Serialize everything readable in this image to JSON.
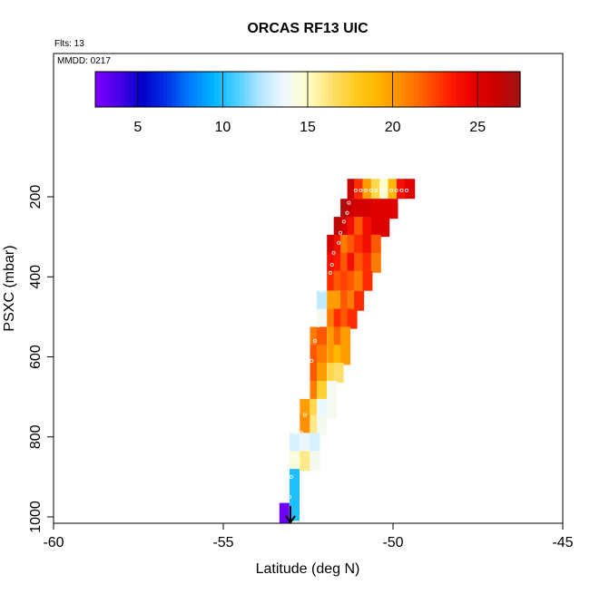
{
  "chart_data": {
    "type": "heatmap",
    "title": "ORCAS RF13 UIC",
    "annotations": {
      "flights": "Flts: 13",
      "date": "MMDD: 0217"
    },
    "xlabel": "Latitude (deg N)",
    "ylabel": "PSXC (mbar)",
    "xlim": [
      -60,
      -45
    ],
    "ylim": [
      1000,
      0
    ],
    "xticks": [
      "-60",
      "-55",
      "-50",
      "-45"
    ],
    "yticks": [
      "200",
      "400",
      "600",
      "800",
      "1000"
    ],
    "colorbar": {
      "range": [
        2.5,
        27.5
      ],
      "ticks": [
        "5",
        "10",
        "15",
        "20",
        "25"
      ],
      "colors": [
        "#8000ff",
        "#4a00e8",
        "#0000c8",
        "#0030e6",
        "#007cff",
        "#00b4ff",
        "#4ccfff",
        "#b4e6ff",
        "#f0f8ff",
        "#ffffc8",
        "#ffe070",
        "#ffcc20",
        "#ffb400",
        "#ff8c00",
        "#ff5a00",
        "#ff1e00",
        "#e60000",
        "#c80000",
        "#a01414"
      ]
    },
    "cells": [
      [
        -51.2,
        180,
        26
      ],
      [
        -51.0,
        180,
        23
      ],
      [
        -50.75,
        180,
        20
      ],
      [
        -50.5,
        180,
        17
      ],
      [
        -50.25,
        180,
        14.8
      ],
      [
        -50.0,
        180,
        19
      ],
      [
        -49.75,
        180,
        24
      ],
      [
        -49.5,
        180,
        25
      ],
      [
        -51.4,
        230,
        27
      ],
      [
        -51.2,
        230,
        26
      ],
      [
        -51.0,
        230,
        25.5
      ],
      [
        -50.75,
        230,
        25.5
      ],
      [
        -50.5,
        230,
        25
      ],
      [
        -50.25,
        230,
        25
      ],
      [
        -50.0,
        230,
        25
      ],
      [
        -51.6,
        275,
        26.5
      ],
      [
        -51.4,
        275,
        25.5
      ],
      [
        -51.2,
        275,
        24
      ],
      [
        -51.0,
        275,
        22
      ],
      [
        -50.75,
        275,
        24
      ],
      [
        -50.5,
        275,
        25
      ],
      [
        -50.25,
        275,
        25
      ],
      [
        -51.8,
        320,
        25.5
      ],
      [
        -51.6,
        320,
        24
      ],
      [
        -51.4,
        320,
        21
      ],
      [
        -51.2,
        320,
        22
      ],
      [
        -51.0,
        320,
        23
      ],
      [
        -50.75,
        320,
        24
      ],
      [
        -50.5,
        320,
        22
      ],
      [
        -51.8,
        365,
        24
      ],
      [
        -51.6,
        365,
        23.5
      ],
      [
        -51.4,
        365,
        22
      ],
      [
        -51.2,
        365,
        24
      ],
      [
        -51.0,
        365,
        22
      ],
      [
        -50.75,
        365,
        23
      ],
      [
        -50.5,
        365,
        21
      ],
      [
        -51.8,
        410,
        23
      ],
      [
        -51.6,
        410,
        22
      ],
      [
        -51.4,
        410,
        22.5
      ],
      [
        -51.2,
        410,
        22
      ],
      [
        -51.0,
        410,
        21
      ],
      [
        -50.75,
        410,
        23
      ],
      [
        -52.1,
        460,
        12.5
      ],
      [
        -51.8,
        460,
        20
      ],
      [
        -51.6,
        460,
        20
      ],
      [
        -51.4,
        460,
        22
      ],
      [
        -51.2,
        460,
        21
      ],
      [
        -51.0,
        460,
        23
      ],
      [
        -52.1,
        505,
        14
      ],
      [
        -51.8,
        505,
        21
      ],
      [
        -51.6,
        505,
        23
      ],
      [
        -51.4,
        505,
        22
      ],
      [
        -51.2,
        505,
        23
      ],
      [
        -52.3,
        550,
        21
      ],
      [
        -52.1,
        550,
        22
      ],
      [
        -51.8,
        550,
        20
      ],
      [
        -51.6,
        550,
        21.5
      ],
      [
        -51.4,
        550,
        20
      ],
      [
        -52.3,
        595,
        22
      ],
      [
        -52.1,
        595,
        21
      ],
      [
        -51.8,
        595,
        20
      ],
      [
        -51.6,
        595,
        19
      ],
      [
        -51.4,
        595,
        20
      ],
      [
        -52.3,
        640,
        22
      ],
      [
        -52.1,
        640,
        20
      ],
      [
        -51.8,
        640,
        17
      ],
      [
        -51.6,
        640,
        16.5
      ],
      [
        -52.3,
        685,
        21
      ],
      [
        -52.1,
        685,
        17.5
      ],
      [
        -51.8,
        685,
        14
      ],
      [
        -52.6,
        730,
        20
      ],
      [
        -52.3,
        730,
        17
      ],
      [
        -52.1,
        730,
        13.5
      ],
      [
        -51.8,
        730,
        14
      ],
      [
        -52.6,
        770,
        20.5
      ],
      [
        -52.3,
        770,
        16
      ],
      [
        -52.1,
        770,
        14
      ],
      [
        -52.9,
        815,
        13
      ],
      [
        -52.6,
        815,
        13.5
      ],
      [
        -52.3,
        815,
        13
      ],
      [
        -52.9,
        860,
        14.5
      ],
      [
        -52.6,
        860,
        16
      ],
      [
        -52.3,
        860,
        14
      ],
      [
        -52.9,
        905,
        10
      ],
      [
        -52.9,
        950,
        10
      ],
      [
        -52.9,
        985,
        10
      ],
      [
        -53.2,
        990,
        3
      ]
    ],
    "markers": [
      [
        -51.1,
        184
      ],
      [
        -50.95,
        184
      ],
      [
        -50.8,
        184
      ],
      [
        -50.65,
        184
      ],
      [
        -50.5,
        184
      ],
      [
        -50.35,
        184
      ],
      [
        -50.2,
        184
      ],
      [
        -50.05,
        184
      ],
      [
        -49.9,
        184
      ],
      [
        -49.75,
        184
      ],
      [
        -49.6,
        184
      ],
      [
        -51.3,
        215
      ],
      [
        -51.35,
        240
      ],
      [
        -51.45,
        262
      ],
      [
        -51.55,
        290
      ],
      [
        -51.6,
        315
      ],
      [
        -51.75,
        340
      ],
      [
        -51.8,
        370
      ],
      [
        -51.85,
        390
      ],
      [
        -52.1,
        435
      ],
      [
        -52.3,
        480
      ],
      [
        -52.2,
        522
      ],
      [
        -52.3,
        560
      ],
      [
        -52.4,
        610
      ],
      [
        -52.5,
        650
      ],
      [
        -52.55,
        700
      ],
      [
        -52.6,
        745
      ],
      [
        -52.9,
        790
      ],
      [
        -52.8,
        790
      ],
      [
        -52.7,
        790
      ],
      [
        -52.95,
        850
      ],
      [
        -53.0,
        900
      ],
      [
        -53.05,
        950
      ]
    ]
  }
}
